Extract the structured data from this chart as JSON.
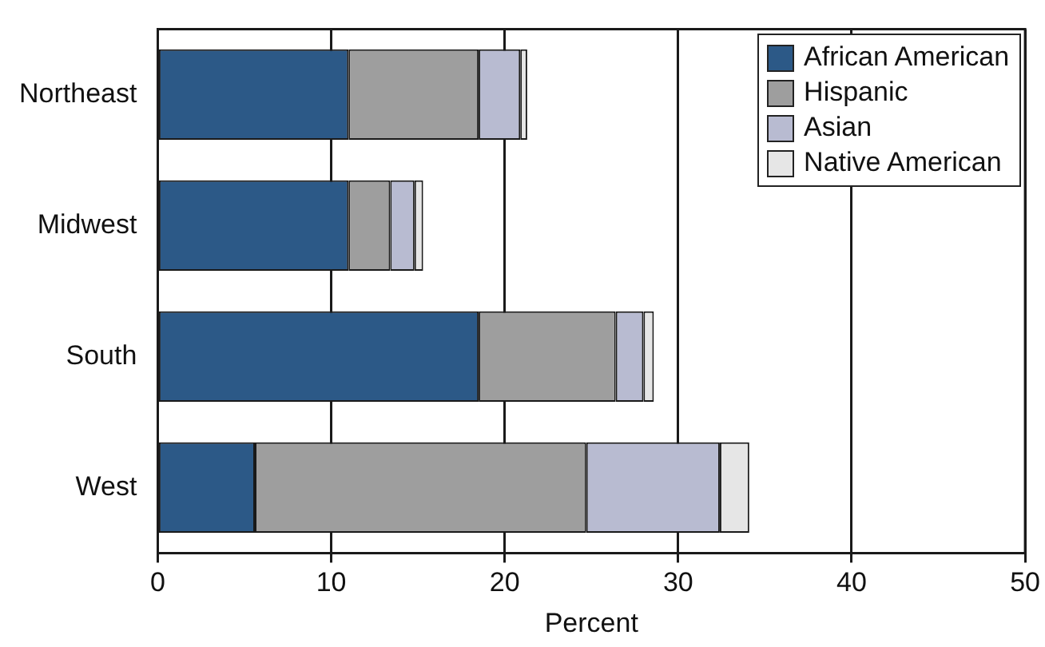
{
  "chart_data": {
    "type": "bar",
    "orientation": "horizontal",
    "stacked": true,
    "xlabel": "Percent",
    "categories": [
      "Northeast",
      "Midwest",
      "South",
      "West"
    ],
    "series": [
      {
        "name": "African American",
        "color": "#2c5987",
        "values": [
          11.0,
          11.0,
          18.5,
          5.6
        ]
      },
      {
        "name": "Hispanic",
        "color": "#9e9e9e",
        "values": [
          7.5,
          2.4,
          7.9,
          19.1
        ]
      },
      {
        "name": "Asian",
        "color": "#b8bbd1",
        "values": [
          2.4,
          1.4,
          1.6,
          7.7
        ]
      },
      {
        "name": "Native American",
        "color": "#e6e6e6",
        "values": [
          0.4,
          0.5,
          0.6,
          1.7
        ]
      }
    ],
    "xlim": [
      0,
      50
    ],
    "xticks": [
      0,
      10,
      20,
      30,
      40,
      50
    ],
    "grid": "x",
    "legend": "top right"
  }
}
